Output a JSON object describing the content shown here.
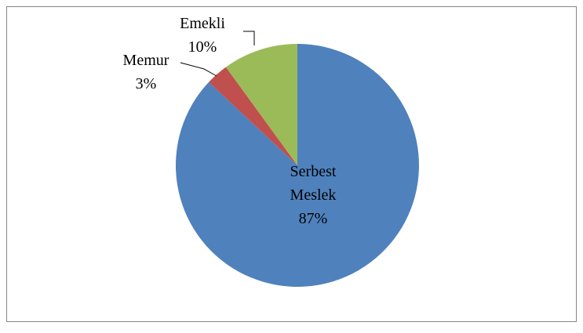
{
  "chart_data": {
    "type": "pie",
    "categories": [
      "Serbest Meslek",
      "Memur",
      "Emekli"
    ],
    "values": [
      87,
      3,
      10
    ],
    "value_labels": [
      "87%",
      "3%",
      "10%"
    ],
    "colors": [
      "#4f81bd",
      "#c0504d",
      "#9bbb59"
    ]
  }
}
